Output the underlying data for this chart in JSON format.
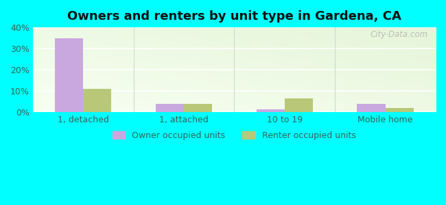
{
  "title": "Owners and renters by unit type in Gardena, CA",
  "categories": [
    "1, detached",
    "1, attached",
    "10 to 19",
    "Mobile home"
  ],
  "owner_values": [
    35,
    4,
    1.5,
    4
  ],
  "renter_values": [
    11,
    4,
    6.5,
    2
  ],
  "owner_color": "#c9a8e0",
  "renter_color": "#b8c878",
  "ylim": [
    0,
    40
  ],
  "yticks": [
    0,
    10,
    20,
    30,
    40
  ],
  "outer_background": "#00ffff",
  "watermark": "City-Data.com",
  "legend_owner": "Owner occupied units",
  "legend_renter": "Renter occupied units",
  "bar_width": 0.28,
  "title_fontsize": 13,
  "tick_label_color": "#336655",
  "grid_color": "#e8f0e8",
  "bg_top_right": "#e8f0d8",
  "bg_bottom_left": "#f8fff8"
}
